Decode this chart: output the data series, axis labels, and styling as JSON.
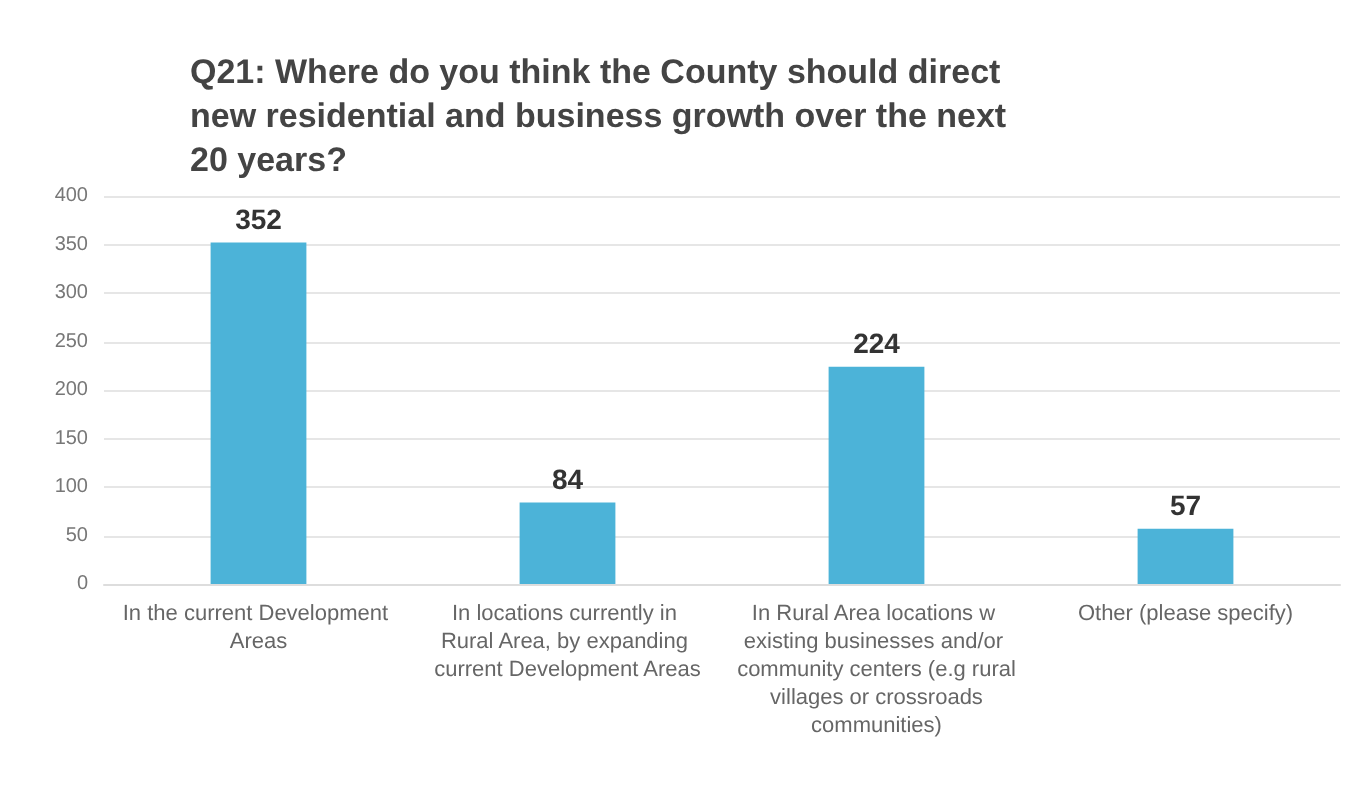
{
  "chart_data": {
    "type": "bar",
    "title": "Q21: Where do you think the County should direct new residential and business growth over the next 20 years?",
    "categories": [
      "In the current Development Areas",
      "In locations currently in Rural Area, by expanding current Development Areas",
      "In Rural Area locations w existing businesses and/or community centers (e.g rural villages or crossroads communities)",
      "Other (please specify)"
    ],
    "values": [
      352,
      84,
      224,
      57
    ],
    "color": "#4cb3d8",
    "data_labels": true,
    "ylim": [
      0,
      400
    ],
    "yticks": [
      0,
      50,
      100,
      150,
      200,
      250,
      300,
      350,
      400
    ],
    "grid": "y"
  }
}
